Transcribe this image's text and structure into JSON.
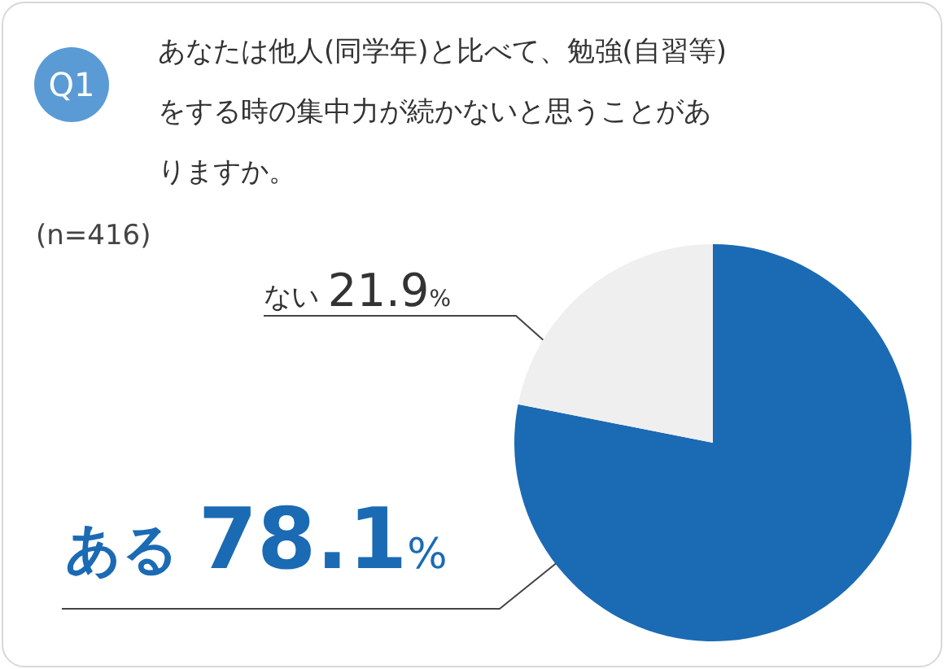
{
  "chart_data": {
    "type": "pie",
    "title": "あなたは他人(同学年)と比べて、勉強(自習等)をする時の集中力が続かないと思うことがありますか。",
    "annotations": [
      "Q1",
      "(n=416)"
    ],
    "categories": [
      "ある",
      "ない"
    ],
    "values": [
      78.1,
      21.9
    ],
    "colors": [
      "#1b6ab4",
      "#efefef"
    ],
    "value_labels": [
      "78.1%",
      "21.9%"
    ]
  }
}
